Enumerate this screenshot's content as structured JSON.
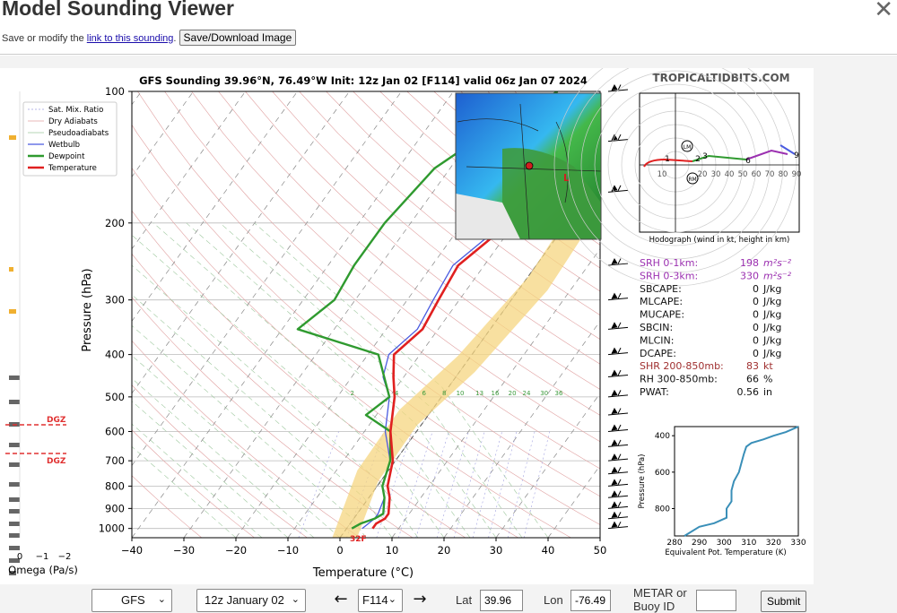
{
  "header": {
    "title": "Model Sounding Viewer",
    "sub_prefix": "Save or modify the ",
    "link_text": "link to this sounding",
    "sub_suffix": ".",
    "save_label": "Save/Download Image"
  },
  "chart": {
    "title": "GFS Sounding 39.96°N, 76.49°W Init: 12z Jan 02 [F114] valid 06z Jan 07 2024",
    "brand": "TROPICALTIDBITS.COM",
    "xlabel": "Temperature (°C)",
    "ylabel": "Pressure (hPa)",
    "x_ticks": [
      "−40",
      "−30",
      "−20",
      "−10",
      "0",
      "10",
      "20",
      "30",
      "40",
      "50"
    ],
    "p_ticks": [
      "100",
      "200",
      "300",
      "400",
      "500",
      "600",
      "700",
      "800",
      "900",
      "1000"
    ],
    "legend": [
      "Sat. Mix. Ratio",
      "Dry Adiabats",
      "Pseudoadiabats",
      "Wetbulb",
      "Dewpoint",
      "Temperature"
    ],
    "mix_labels": [
      "2",
      "4",
      "6",
      "8",
      "10",
      "13",
      "16",
      "20",
      "24",
      "30",
      "36"
    ],
    "freeze_label": "32F",
    "omega_label": "Omega (Pa/s)",
    "omega_ticks": [
      "0",
      "−1",
      "−2"
    ],
    "dgz_top": "DGZ",
    "dgz_bottom": "DGZ",
    "colors": {
      "temperature": "#e02020",
      "dewpoint": "#2f9a2f",
      "wetbulb": "#4a5be0",
      "dgz": "#e03030",
      "purple": "#9b30b0"
    }
  },
  "chart_data": [
    {
      "type": "line",
      "title": "GFS Sounding 39.96°N, 76.49°W Init: 12z Jan 02 [F114] valid 06z Jan 07 2024",
      "xlabel": "Temperature (°C)",
      "ylabel": "Pressure (hPa)",
      "xlim": [
        -40,
        50
      ],
      "ylim": [
        1050,
        100
      ],
      "series": [
        {
          "name": "Temperature",
          "points": [
            [
              5,
              1000
            ],
            [
              5,
              975
            ],
            [
              6,
              950
            ],
            [
              6,
              925
            ],
            [
              4,
              850
            ],
            [
              2,
              800
            ],
            [
              -0.5,
              700
            ],
            [
              -5,
              600
            ],
            [
              -9,
              500
            ],
            [
              -12,
              450
            ],
            [
              -15,
              400
            ],
            [
              -13,
              350
            ],
            [
              -14,
              300
            ],
            [
              -15,
              250
            ],
            [
              -11,
              200
            ],
            [
              -2,
              150
            ],
            [
              1,
              125
            ],
            [
              4,
              100
            ]
          ]
        },
        {
          "name": "Dewpoint",
          "points": [
            [
              1,
              1000
            ],
            [
              2,
              975
            ],
            [
              4,
              950
            ],
            [
              5,
              925
            ],
            [
              3,
              850
            ],
            [
              1,
              800
            ],
            [
              -1,
              700
            ],
            [
              -5,
              600
            ],
            [
              -12,
              550
            ],
            [
              -10,
              500
            ],
            [
              -18,
              400
            ],
            [
              -37,
              350
            ],
            [
              -34,
              300
            ],
            [
              -35,
              250
            ],
            [
              -35,
              200
            ],
            [
              -33,
              150
            ],
            [
              -28,
              125
            ],
            [
              -20,
              100
            ]
          ]
        },
        {
          "name": "Wetbulb",
          "points": [
            [
              3,
              1000
            ],
            [
              4,
              950
            ],
            [
              4,
              925
            ],
            [
              3,
              850
            ],
            [
              1,
              800
            ],
            [
              -1,
              700
            ],
            [
              -6,
              600
            ],
            [
              -10,
              500
            ],
            [
              -14,
              450
            ],
            [
              -16,
              400
            ],
            [
              -14,
              350
            ],
            [
              -15,
              300
            ],
            [
              -16,
              250
            ],
            [
              -12,
              200
            ],
            [
              -3,
              150
            ],
            [
              0,
              125
            ],
            [
              4,
              100
            ]
          ]
        }
      ]
    },
    {
      "type": "line",
      "title": "Hodograph (wind in kt, height in km)",
      "rings": [
        "10",
        "20",
        "30",
        "40",
        "50",
        "60",
        "70",
        "80",
        "90"
      ],
      "height_labels": [
        "1",
        "2",
        "3",
        "6",
        "9"
      ],
      "motion_labels": [
        "LM",
        "RM"
      ]
    },
    {
      "type": "line",
      "xlabel": "Equivalent Pot. Temperature (K)",
      "ylabel": "Pressure (hPa)",
      "x_ticks": [
        "280",
        "290",
        "300",
        "310",
        "320",
        "330"
      ],
      "y_ticks": [
        "400",
        "600",
        "800"
      ],
      "xlim": [
        280,
        330
      ],
      "ylim": [
        950,
        350
      ],
      "series": [
        {
          "points": [
            [
              284,
              950
            ],
            [
              290,
              900
            ],
            [
              296,
              880
            ],
            [
              301,
              850
            ],
            [
              301,
              800
            ],
            [
              303,
              760
            ],
            [
              303,
              700
            ],
            [
              304,
              650
            ],
            [
              306,
              600
            ],
            [
              307,
              550
            ],
            [
              308,
              500
            ],
            [
              309,
              460
            ],
            [
              311,
              440
            ],
            [
              316,
              420
            ],
            [
              320,
              400
            ],
            [
              325,
              380
            ],
            [
              330,
              350
            ]
          ]
        }
      ]
    }
  ],
  "indices": [
    {
      "label": "SRH 0-1km:",
      "value": "198",
      "unit": "m²s⁻²",
      "color": "#9b30b0"
    },
    {
      "label": "SRH 0-3km:",
      "value": "330",
      "unit": "m²s⁻²",
      "color": "#9b30b0"
    },
    {
      "label": "SBCAPE:",
      "value": "0",
      "unit": "J/kg",
      "color": "#111111"
    },
    {
      "label": "MLCAPE:",
      "value": "0",
      "unit": "J/kg",
      "color": "#111111"
    },
    {
      "label": "MUCAPE:",
      "value": "0",
      "unit": "J/kg",
      "color": "#111111"
    },
    {
      "label": "SBCIN:",
      "value": "0",
      "unit": "J/kg",
      "color": "#111111"
    },
    {
      "label": "MLCIN:",
      "value": "0",
      "unit": "J/kg",
      "color": "#111111"
    },
    {
      "label": "DCAPE:",
      "value": "0",
      "unit": "J/kg",
      "color": "#111111"
    },
    {
      "label": "SHR 200-850mb:",
      "value": "83",
      "unit": "kt",
      "color": "#a03030"
    },
    {
      "label": "RH 300-850mb:",
      "value": "66",
      "unit": "%",
      "color": "#111111"
    },
    {
      "label": "PWAT:",
      "value": "0.56",
      "unit": "in",
      "color": "#111111"
    }
  ],
  "map": {
    "marker_labels": [
      "L"
    ]
  },
  "controls": {
    "model": "GFS",
    "run": "12z January 02",
    "forecast_hour": "F114",
    "lat_label": "Lat",
    "lat_value": "39.96",
    "lon_label": "Lon",
    "lon_value": "-76.49",
    "metar_label_1": "METAR or",
    "metar_label_2": "Buoy ID",
    "metar_value": "",
    "submit_label": "Submit",
    "prev_icon": "left-arrow-icon",
    "next_icon": "right-arrow-icon"
  }
}
